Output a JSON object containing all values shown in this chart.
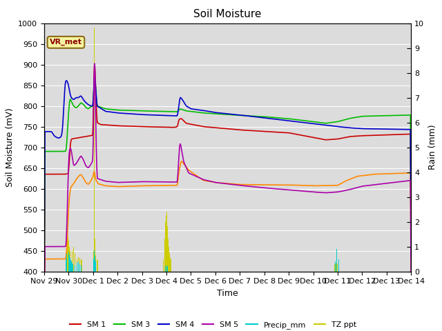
{
  "title": "Soil Moisture",
  "xlabel": "Time",
  "ylabel_left": "Soil Moisture (mV)",
  "ylabel_right": "Rain (mm)",
  "ylim_left": [
    400,
    1000
  ],
  "ylim_right": [
    0.0,
    10.0
  ],
  "background_color": "#dcdcdc",
  "figure_color": "#ffffff",
  "annotation_text": "VR_met",
  "annotation_color": "#8B0000",
  "annotation_bg": "#f5f5a0",
  "annotation_border": "#8B6914",
  "series_colors": {
    "SM1": "#cc0000",
    "SM2": "#ff8800",
    "SM3": "#00bb00",
    "SM4": "#0000cc",
    "SM5": "#aa00aa",
    "Precip": "#00cccc",
    "TZ_ppt": "#cccc00"
  },
  "xtick_labels": [
    "Nov 29",
    "Nov 30",
    "Dec 1",
    "Dec 2",
    "Dec 3",
    "Dec 4",
    "Dec 5",
    "Dec 6",
    "Dec 7",
    "Dec 8",
    "Dec 9",
    "Dec 10",
    "Dec 11",
    "Dec 12",
    "Dec 13",
    "Dec 14"
  ],
  "xtick_positions": [
    0,
    1,
    2,
    3,
    4,
    5,
    6,
    7,
    8,
    9,
    10,
    11,
    12,
    13,
    14,
    15
  ],
  "yticks_left": [
    400,
    450,
    500,
    550,
    600,
    650,
    700,
    750,
    800,
    850,
    900,
    950,
    1000
  ],
  "yticks_right": [
    0.0,
    1.0,
    2.0,
    3.0,
    4.0,
    5.0,
    6.0,
    7.0,
    8.0,
    9.0,
    10.0
  ]
}
